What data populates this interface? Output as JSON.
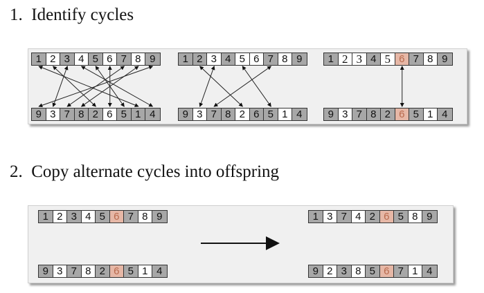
{
  "step1": {
    "number": "1.",
    "title": "Identify cycles"
  },
  "step2": {
    "number": "2.",
    "title": "Copy alternate cycles into offspring"
  },
  "colors": {
    "gray": "#a7a7a7",
    "highlight": "#e6b7a6",
    "white": "#ffffff"
  },
  "identify": [
    {
      "top": [
        "1",
        "2",
        "3",
        "4",
        "5",
        "6",
        "7",
        "8",
        "9"
      ],
      "top_fill": [
        "g",
        "w",
        "g",
        "w",
        "g",
        "w",
        "g",
        "w",
        "g"
      ],
      "bottom": [
        "9",
        "3",
        "7",
        "8",
        "2",
        "6",
        "5",
        "1",
        "4"
      ],
      "bottom_fill": [
        "g",
        "w",
        "g",
        "g",
        "g",
        "w",
        "g",
        "g",
        "g"
      ],
      "links": [
        [
          0,
          7
        ],
        [
          1,
          4
        ],
        [
          2,
          1
        ],
        [
          3,
          8
        ],
        [
          4,
          6
        ],
        [
          5,
          5
        ],
        [
          6,
          2
        ],
        [
          7,
          3
        ],
        [
          8,
          0
        ]
      ]
    },
    {
      "top": [
        "1",
        "2",
        "3",
        "4",
        "5",
        "6",
        "7",
        "8",
        "9"
      ],
      "top_fill": [
        "g",
        "g",
        "w",
        "g",
        "w",
        "w",
        "g",
        "w",
        "g"
      ],
      "bottom": [
        "9",
        "3",
        "7",
        "8",
        "2",
        "6",
        "5",
        "1",
        "4"
      ],
      "bottom_fill": [
        "g",
        "w",
        "g",
        "g",
        "w",
        "g",
        "g",
        "w",
        "g"
      ],
      "links": [
        [
          1,
          4
        ],
        [
          2,
          1
        ],
        [
          4,
          6
        ],
        [
          6,
          2
        ]
      ]
    },
    {
      "top": [
        "1",
        "2",
        "3",
        "4",
        "5",
        "6",
        "7",
        "8",
        "9"
      ],
      "top_fill": [
        "g",
        "w",
        "w",
        "g",
        "w",
        "h",
        "g",
        "w",
        "g"
      ],
      "top_serif": [
        false,
        true,
        true,
        false,
        true,
        false,
        false,
        false,
        false
      ],
      "bottom": [
        "9",
        "3",
        "7",
        "8",
        "2",
        "6",
        "5",
        "1",
        "4"
      ],
      "bottom_fill": [
        "g",
        "w",
        "g",
        "g",
        "g",
        "h",
        "g",
        "w",
        "g"
      ],
      "links": [
        [
          5,
          5
        ]
      ]
    }
  ],
  "copy": {
    "parent1": [
      "1",
      "2",
      "3",
      "4",
      "5",
      "6",
      "7",
      "8",
      "9"
    ],
    "parent1_fill": [
      "g",
      "w",
      "g",
      "w",
      "g",
      "h",
      "g",
      "w",
      "g"
    ],
    "parent2": [
      "9",
      "3",
      "7",
      "8",
      "2",
      "6",
      "5",
      "1",
      "4"
    ],
    "parent2_fill": [
      "g",
      "w",
      "g",
      "w",
      "g",
      "h",
      "g",
      "w",
      "g"
    ],
    "offspring1": [
      "1",
      "3",
      "7",
      "4",
      "2",
      "6",
      "5",
      "8",
      "9"
    ],
    "offspring1_fill": [
      "g",
      "w",
      "g",
      "w",
      "g",
      "h",
      "g",
      "w",
      "g"
    ],
    "offspring2": [
      "9",
      "2",
      "3",
      "8",
      "5",
      "6",
      "7",
      "1",
      "4"
    ],
    "offspring2_fill": [
      "g",
      "w",
      "g",
      "w",
      "g",
      "h",
      "g",
      "w",
      "g"
    ]
  }
}
